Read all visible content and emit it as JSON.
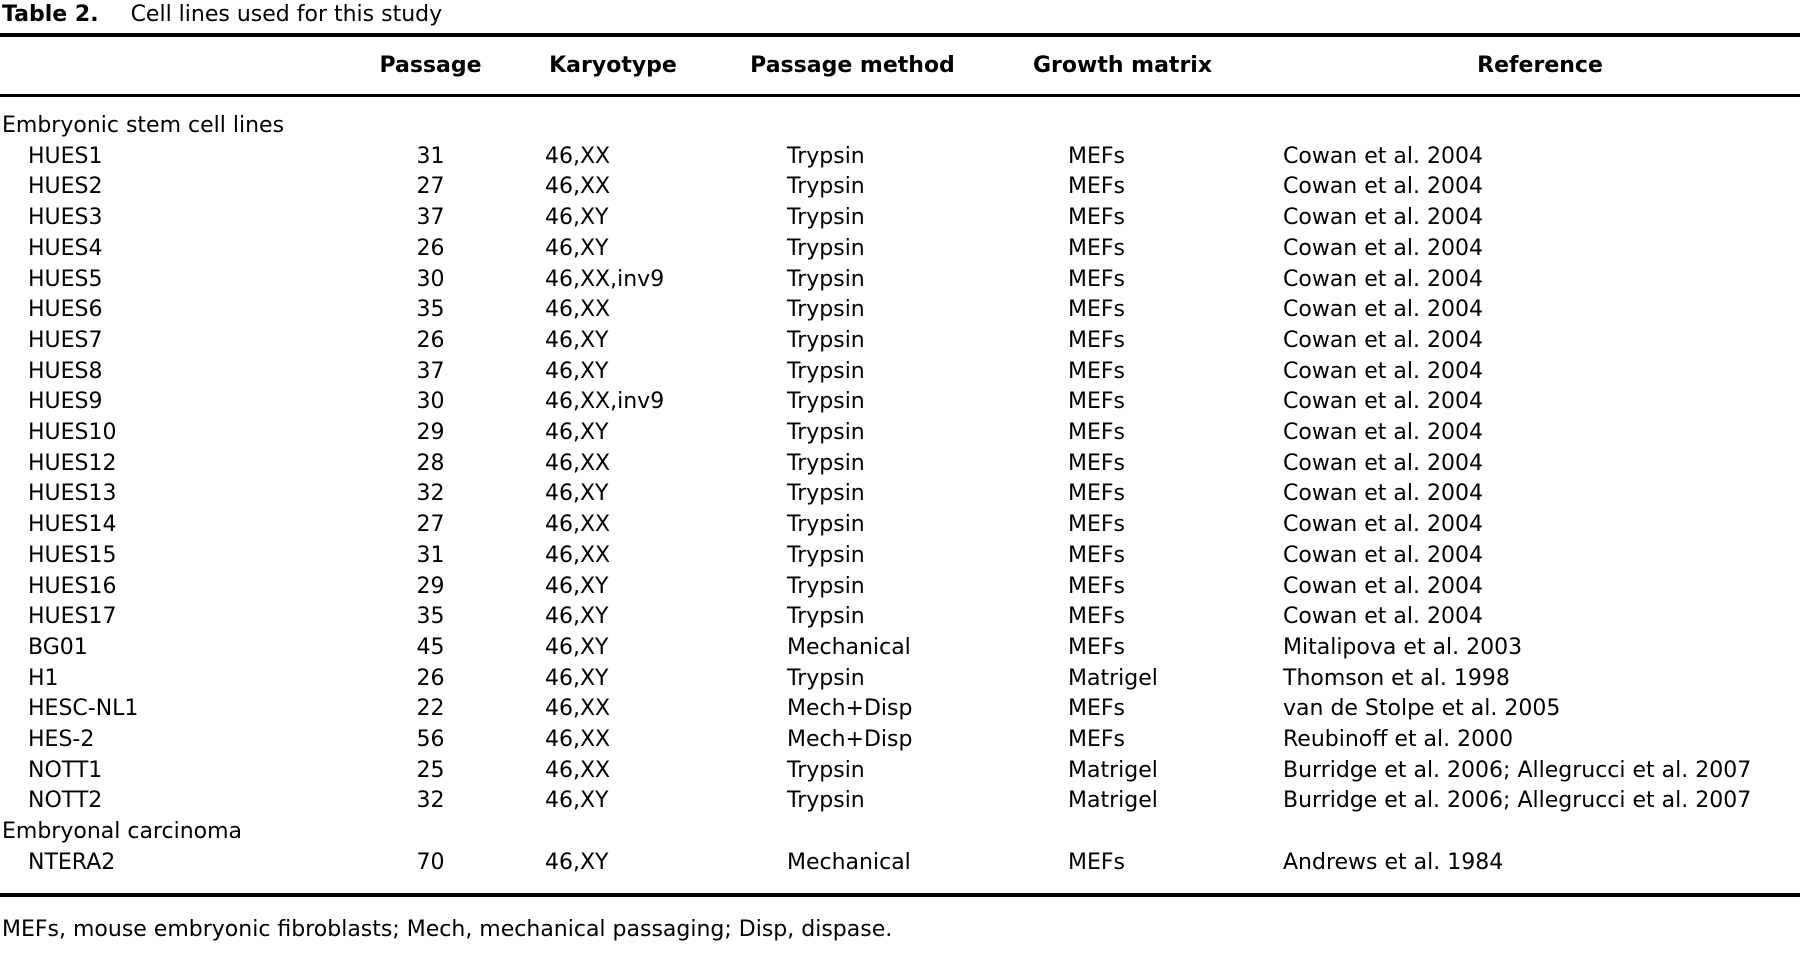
{
  "page": {
    "title_label": "Table 2.",
    "title_caption": "Cell lines used for this study",
    "footnote": "MEFs, mouse embryonic fibroblasts; Mech, mechanical passaging; Disp, dispase."
  },
  "table": {
    "columns": [
      "",
      "Passage",
      "Karyotype",
      "Passage method",
      "Growth matrix",
      "Reference"
    ],
    "sections": [
      {
        "title": "Embryonic stem cell lines",
        "rows": [
          [
            "HUES1",
            "31",
            "46,XX",
            "Trypsin",
            "MEFs",
            "Cowan et al. 2004"
          ],
          [
            "HUES2",
            "27",
            "46,XX",
            "Trypsin",
            "MEFs",
            "Cowan et al. 2004"
          ],
          [
            "HUES3",
            "37",
            "46,XY",
            "Trypsin",
            "MEFs",
            "Cowan et al. 2004"
          ],
          [
            "HUES4",
            "26",
            "46,XY",
            "Trypsin",
            "MEFs",
            "Cowan et al. 2004"
          ],
          [
            "HUES5",
            "30",
            "46,XX,inv9",
            "Trypsin",
            "MEFs",
            "Cowan et al. 2004"
          ],
          [
            "HUES6",
            "35",
            "46,XX",
            "Trypsin",
            "MEFs",
            "Cowan et al. 2004"
          ],
          [
            "HUES7",
            "26",
            "46,XY",
            "Trypsin",
            "MEFs",
            "Cowan et al. 2004"
          ],
          [
            "HUES8",
            "37",
            "46,XY",
            "Trypsin",
            "MEFs",
            "Cowan et al. 2004"
          ],
          [
            "HUES9",
            "30",
            "46,XX,inv9",
            "Trypsin",
            "MEFs",
            "Cowan et al. 2004"
          ],
          [
            "HUES10",
            "29",
            "46,XY",
            "Trypsin",
            "MEFs",
            "Cowan et al. 2004"
          ],
          [
            "HUES12",
            "28",
            "46,XX",
            "Trypsin",
            "MEFs",
            "Cowan et al. 2004"
          ],
          [
            "HUES13",
            "32",
            "46,XY",
            "Trypsin",
            "MEFs",
            "Cowan et al. 2004"
          ],
          [
            "HUES14",
            "27",
            "46,XX",
            "Trypsin",
            "MEFs",
            "Cowan et al. 2004"
          ],
          [
            "HUES15",
            "31",
            "46,XX",
            "Trypsin",
            "MEFs",
            "Cowan et al. 2004"
          ],
          [
            "HUES16",
            "29",
            "46,XY",
            "Trypsin",
            "MEFs",
            "Cowan et al. 2004"
          ],
          [
            "HUES17",
            "35",
            "46,XY",
            "Trypsin",
            "MEFs",
            "Cowan et al. 2004"
          ],
          [
            "BG01",
            "45",
            "46,XY",
            "Mechanical",
            "MEFs",
            "Mitalipova et al. 2003"
          ],
          [
            "H1",
            "26",
            "46,XY",
            "Trypsin",
            "Matrigel",
            "Thomson et al. 1998"
          ],
          [
            "HESC-NL1",
            "22",
            "46,XX",
            "Mech+Disp",
            "MEFs",
            "van de Stolpe et al. 2005"
          ],
          [
            "HES-2",
            "56",
            "46,XX",
            "Mech+Disp",
            "MEFs",
            "Reubinoff et al. 2000"
          ],
          [
            "NOTT1",
            "25",
            "46,XX",
            "Trypsin",
            "Matrigel",
            "Burridge et al. 2006; Allegrucci et al. 2007"
          ],
          [
            "NOTT2",
            "32",
            "46,XY",
            "Trypsin",
            "Matrigel",
            "Burridge et al. 2006; Allegrucci et al. 2007"
          ]
        ]
      },
      {
        "title": "Embryonal carcinoma",
        "rows": [
          [
            "NTERA2",
            "70",
            "46,XY",
            "Mechanical",
            "MEFs",
            "Andrews et al. 1984"
          ]
        ]
      }
    ]
  }
}
